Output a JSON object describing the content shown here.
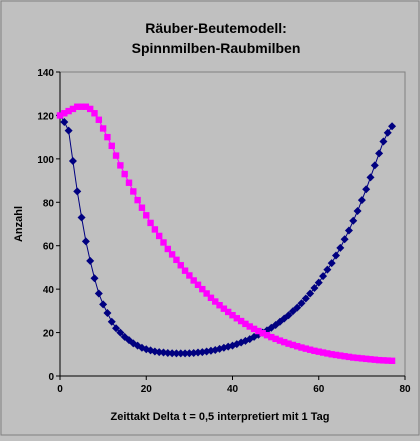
{
  "chart_data": {
    "type": "scatter",
    "title": [
      "Räuber-Beutemodell:",
      "Spinnmilben-Raubmilben"
    ],
    "xlabel": "Zeittakt Delta t = 0,5 interpretiert mit 1 Tag",
    "ylabel": "Anzahl",
    "xlim": [
      0,
      80
    ],
    "ylim": [
      0,
      140
    ],
    "xticks": [
      0,
      20,
      40,
      60,
      80
    ],
    "yticks": [
      0,
      20,
      40,
      60,
      80,
      100,
      120,
      140
    ],
    "grid": false,
    "legend": "none",
    "series": [
      {
        "marker": "diamond",
        "color": "#000080",
        "x": [
          0,
          1,
          2,
          3,
          4,
          5,
          6,
          7,
          8,
          9,
          10,
          11,
          12,
          13,
          14,
          15,
          16,
          17,
          18,
          19,
          20,
          21,
          22,
          23,
          24,
          25,
          26,
          27,
          28,
          29,
          30,
          31,
          32,
          33,
          34,
          35,
          36,
          37,
          38,
          39,
          40,
          41,
          42,
          43,
          44,
          45,
          46,
          47,
          48,
          49,
          50,
          51,
          52,
          53,
          54,
          55,
          56,
          57,
          58,
          59,
          60,
          61,
          62,
          63,
          64,
          65,
          66,
          67,
          68,
          69,
          70,
          71,
          72,
          73,
          74,
          75,
          76,
          77
        ],
        "y": [
          120,
          117,
          113,
          99,
          85,
          73,
          62,
          53,
          45,
          38,
          33,
          29,
          25,
          22,
          20,
          18,
          16.5,
          15,
          14,
          13,
          12.3,
          11.8,
          11.3,
          11,
          10.8,
          10.6,
          10.5,
          10.4,
          10.4,
          10.4,
          10.5,
          10.6,
          10.8,
          11,
          11.3,
          11.6,
          12,
          12.5,
          13,
          13.5,
          14,
          14.7,
          15.4,
          16.2,
          17,
          18,
          19,
          20,
          21,
          22.2,
          23.5,
          25,
          26.5,
          28,
          29.8,
          31.5,
          33.5,
          35.7,
          38,
          40.5,
          43,
          46,
          49,
          52,
          55.5,
          59,
          63,
          67,
          71.5,
          76,
          81,
          86,
          91.5,
          97,
          102.5,
          108,
          112,
          115
        ]
      },
      {
        "marker": "square",
        "color": "#ff00ff",
        "x": [
          0,
          1,
          2,
          3,
          4,
          5,
          6,
          7,
          8,
          9,
          10,
          11,
          12,
          13,
          14,
          15,
          16,
          17,
          18,
          19,
          20,
          21,
          22,
          23,
          24,
          25,
          26,
          27,
          28,
          29,
          30,
          31,
          32,
          33,
          34,
          35,
          36,
          37,
          38,
          39,
          40,
          41,
          42,
          43,
          44,
          45,
          46,
          47,
          48,
          49,
          50,
          51,
          52,
          53,
          54,
          55,
          56,
          57,
          58,
          59,
          60,
          61,
          62,
          63,
          64,
          65,
          66,
          67,
          68,
          69,
          70,
          71,
          72,
          73,
          74,
          75,
          76,
          77
        ],
        "y": [
          120,
          121,
          122,
          123,
          124,
          124,
          124,
          123,
          121,
          118,
          114,
          110,
          106,
          101.5,
          97,
          93,
          89,
          85,
          81,
          77.5,
          74,
          70.5,
          67.5,
          64.5,
          61.5,
          58.5,
          56,
          53.5,
          51,
          48.5,
          46.3,
          44,
          42,
          40,
          38,
          36,
          34.3,
          32.6,
          31,
          29.5,
          28,
          26.6,
          25.3,
          24,
          22.8,
          21.7,
          20.7,
          19.7,
          18.8,
          17.9,
          17.1,
          16.3,
          15.6,
          14.9,
          14.3,
          13.7,
          13.1,
          12.6,
          12.1,
          11.6,
          11.2,
          10.8,
          10.4,
          10,
          9.7,
          9.4,
          9.1,
          8.8,
          8.5,
          8.3,
          8.1,
          7.9,
          7.7,
          7.5,
          7.3,
          7.2,
          7.1,
          7
        ]
      }
    ]
  }
}
